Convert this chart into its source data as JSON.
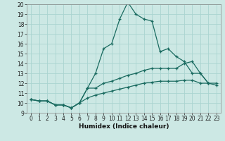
{
  "xlabel": "Humidex (Indice chaleur)",
  "bg_color": "#cce8e4",
  "grid_color": "#aad4d0",
  "line_color": "#1a6b60",
  "xlim": [
    -0.5,
    23.5
  ],
  "ylim": [
    9,
    20
  ],
  "xticks": [
    0,
    1,
    2,
    3,
    4,
    5,
    6,
    7,
    8,
    9,
    10,
    11,
    12,
    13,
    14,
    15,
    16,
    17,
    18,
    19,
    20,
    21,
    22,
    23
  ],
  "yticks": [
    9,
    10,
    11,
    12,
    13,
    14,
    15,
    16,
    17,
    18,
    19,
    20
  ],
  "lines": [
    {
      "x": [
        0,
        1,
        2,
        3,
        4,
        5,
        6,
        7,
        8,
        9,
        10,
        11,
        12,
        13,
        14,
        15,
        16,
        17,
        18,
        19,
        20,
        21,
        22
      ],
      "y": [
        10.35,
        10.2,
        10.2,
        9.8,
        9.8,
        9.5,
        10.0,
        11.5,
        13.0,
        15.5,
        16.0,
        18.5,
        20.2,
        19.0,
        18.5,
        18.3,
        15.2,
        15.5,
        14.7,
        14.2,
        13.0,
        13.0,
        12.0
      ]
    },
    {
      "x": [
        0,
        1,
        2,
        3,
        4,
        5,
        6,
        7,
        8,
        9,
        10,
        11,
        12,
        13,
        14,
        15,
        16,
        17,
        18,
        19,
        20,
        21,
        22,
        23
      ],
      "y": [
        10.35,
        10.2,
        10.2,
        9.8,
        9.8,
        9.5,
        10.0,
        11.5,
        11.5,
        12.0,
        12.2,
        12.5,
        12.8,
        13.0,
        13.3,
        13.5,
        13.5,
        13.5,
        13.5,
        14.0,
        14.2,
        13.0,
        12.0,
        12.0
      ]
    },
    {
      "x": [
        0,
        1,
        2,
        3,
        4,
        5,
        6,
        7,
        8,
        9,
        10,
        11,
        12,
        13,
        14,
        15,
        16,
        17,
        18,
        19,
        20,
        21,
        22,
        23
      ],
      "y": [
        10.35,
        10.2,
        10.2,
        9.8,
        9.8,
        9.5,
        10.0,
        10.5,
        10.8,
        11.0,
        11.2,
        11.4,
        11.6,
        11.8,
        12.0,
        12.1,
        12.2,
        12.2,
        12.2,
        12.3,
        12.3,
        12.0,
        12.0,
        11.8
      ]
    }
  ]
}
